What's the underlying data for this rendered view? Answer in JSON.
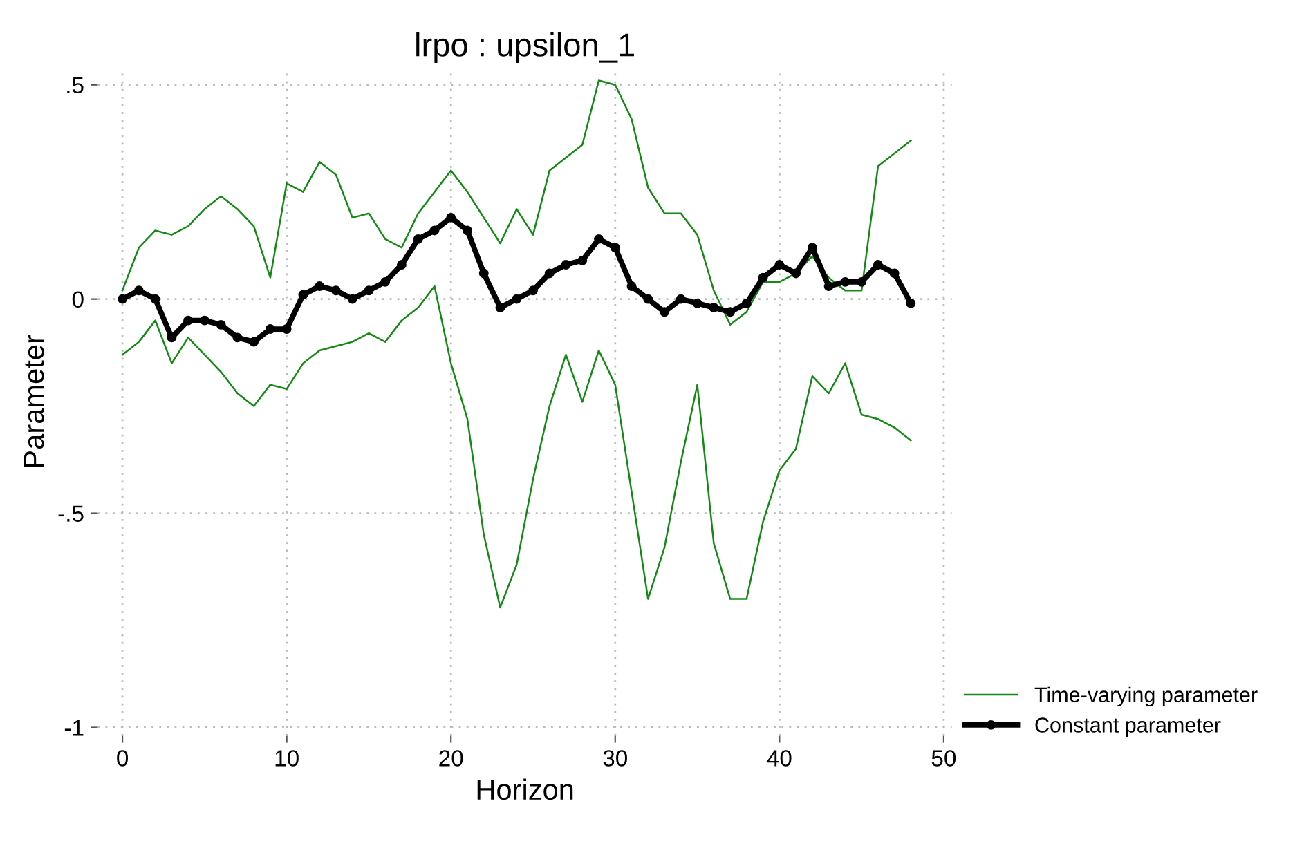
{
  "chart_data": {
    "type": "line",
    "title": "lrpo : upsilon_1",
    "xlabel": "Horizon",
    "ylabel": "Parameter",
    "x": [
      0,
      1,
      2,
      3,
      4,
      5,
      6,
      7,
      8,
      9,
      10,
      11,
      12,
      13,
      14,
      15,
      16,
      17,
      18,
      19,
      20,
      21,
      22,
      23,
      24,
      25,
      26,
      27,
      28,
      29,
      30,
      31,
      32,
      33,
      34,
      35,
      36,
      37,
      38,
      39,
      40,
      41,
      42,
      43,
      44,
      45,
      46,
      47,
      48
    ],
    "series": [
      {
        "name": "Time-varying parameter",
        "color": "#138a13",
        "marker": "none",
        "values": [
          0.02,
          0.12,
          0.16,
          0.15,
          0.17,
          0.21,
          0.24,
          0.21,
          0.17,
          0.05,
          0.27,
          0.25,
          0.32,
          0.29,
          0.19,
          0.2,
          0.14,
          0.12,
          0.2,
          0.25,
          0.3,
          0.25,
          0.19,
          0.13,
          0.21,
          0.15,
          0.3,
          0.33,
          0.36,
          0.51,
          0.5,
          0.42,
          0.26,
          0.2,
          0.2,
          0.15,
          0.02,
          -0.06,
          -0.03,
          0.04,
          0.04,
          0.06,
          0.1,
          0.05,
          0.02,
          0.02,
          0.31,
          0.34,
          0.37
        ]
      },
      {
        "color": "#138a13",
        "marker": "none",
        "values": [
          -0.13,
          -0.1,
          -0.05,
          -0.15,
          -0.09,
          -0.13,
          -0.17,
          -0.22,
          -0.25,
          -0.2,
          -0.21,
          -0.15,
          -0.12,
          -0.11,
          -0.1,
          -0.08,
          -0.1,
          -0.05,
          -0.02,
          0.03,
          -0.15,
          -0.28,
          -0.55,
          -0.72,
          -0.62,
          -0.42,
          -0.25,
          -0.13,
          -0.24,
          -0.12,
          -0.2,
          -0.45,
          -0.7,
          -0.58,
          -0.38,
          -0.2,
          -0.57,
          -0.7,
          -0.7,
          -0.52,
          -0.4,
          -0.35,
          -0.18,
          -0.22,
          -0.15,
          -0.27,
          -0.28,
          -0.3,
          -0.33
        ]
      },
      {
        "name": "Constant parameter",
        "color": "#000000",
        "marker": "circle",
        "values": [
          0,
          0.02,
          0,
          -0.09,
          -0.05,
          -0.05,
          -0.06,
          -0.09,
          -0.1,
          -0.07,
          -0.07,
          0.01,
          0.03,
          0.02,
          0,
          0.02,
          0.04,
          0.08,
          0.14,
          0.16,
          0.19,
          0.16,
          0.06,
          -0.02,
          0,
          0.02,
          0.06,
          0.08,
          0.09,
          0.14,
          0.12,
          0.03,
          0,
          -0.03,
          0,
          -0.01,
          -0.02,
          -0.03,
          -0.01,
          0.05,
          0.08,
          0.06,
          0.12,
          0.03,
          0.04,
          0.04,
          0.08,
          0.06,
          -0.01
        ]
      }
    ],
    "xlim": [
      -1.5,
      50.5
    ],
    "ylim": [
      -1.02,
      0.54
    ],
    "xticks": [
      0,
      10,
      20,
      30,
      40,
      50
    ],
    "yticks": [
      {
        "value": 0.5,
        "label": ".5"
      },
      0,
      {
        "value": -0.5,
        "label": "-.5"
      },
      -1
    ],
    "grid": true,
    "legend": "right",
    "line_style": "solid"
  }
}
